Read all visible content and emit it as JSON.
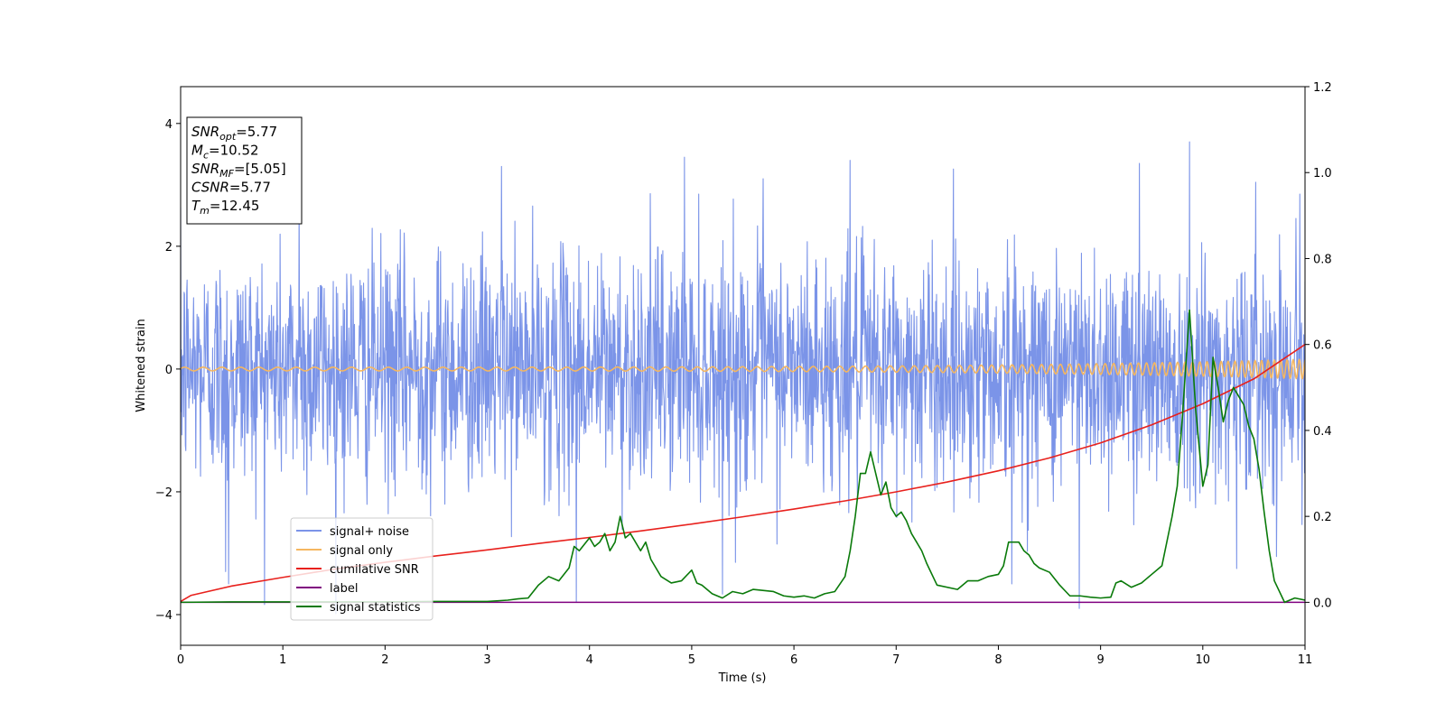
{
  "chart_data": {
    "type": "line",
    "xlabel": "Time (s)",
    "ylabel": "Whitened strain",
    "xlim": [
      0,
      11
    ],
    "ylim_left": [
      -4.5,
      4.6
    ],
    "ylim_right": [
      -0.1,
      1.2
    ],
    "x_ticks": [
      "0",
      "1",
      "2",
      "3",
      "4",
      "5",
      "6",
      "7",
      "8",
      "9",
      "10",
      "11"
    ],
    "y_ticks_left": [
      "4",
      "2",
      "0",
      "−2",
      "−4"
    ],
    "y_ticks_right": [
      "1.2",
      "1.0",
      "0.8",
      "0.6",
      "0.4",
      "0.2",
      "0.0"
    ],
    "grid": false,
    "legend_position": "lower-left",
    "info_box": [
      {
        "var": "SNR",
        "sub": "opt",
        "text": "=5.77"
      },
      {
        "var": "M",
        "sub": "c",
        "text": "=10.52"
      },
      {
        "var": "SNR",
        "sub": "MF",
        "text": "=[5.05]"
      },
      {
        "var": "CSNR",
        "sub": "",
        "text": "=5.77"
      },
      {
        "var": "T",
        "sub": "m",
        "text": "=12.45"
      }
    ],
    "series": [
      {
        "name": "signal+ noise",
        "axis": "left",
        "color": "#7b94e8",
        "generator": "noise",
        "std": 0.95,
        "n_points": 2600,
        "spikes": [
          {
            "x": 9.87,
            "y": 3.7
          },
          {
            "x": 3.14,
            "y": 3.3
          },
          {
            "x": 4.93,
            "y": 3.45
          },
          {
            "x": 6.55,
            "y": 3.4
          },
          {
            "x": 9.38,
            "y": 3.35
          },
          {
            "x": 0.44,
            "y": -3.3
          },
          {
            "x": 0.47,
            "y": -3.5
          },
          {
            "x": 3.87,
            "y": -3.8
          },
          {
            "x": 8.79,
            "y": -3.9
          },
          {
            "x": 5.43,
            "y": -3.15
          },
          {
            "x": 8.13,
            "y": -3.5
          },
          {
            "x": 10.33,
            "y": -3.25
          },
          {
            "x": 10.95,
            "y": 2.85
          },
          {
            "x": 1.16,
            "y": 2.8
          },
          {
            "x": 5.7,
            "y": 3.1
          }
        ]
      },
      {
        "name": "signal only",
        "axis": "left",
        "color": "#f5b760",
        "generator": "chirp",
        "amplitude_start": 0.03,
        "amplitude_end": 0.16,
        "freq_start": 5.5,
        "freq_end": 17.0
      },
      {
        "name": "cumilative SNR",
        "axis": "right",
        "color": "#e8211d",
        "x": [
          0,
          0.1,
          0.5,
          1,
          1.5,
          2,
          2.5,
          3,
          3.5,
          4,
          4.5,
          5,
          5.5,
          6,
          6.5,
          7,
          7.5,
          8,
          8.5,
          9,
          9.5,
          10,
          10.5,
          11
        ],
        "y": [
          0.002,
          0.016,
          0.038,
          0.058,
          0.077,
          0.093,
          0.108,
          0.122,
          0.137,
          0.151,
          0.166,
          0.182,
          0.199,
          0.217,
          0.236,
          0.257,
          0.28,
          0.306,
          0.336,
          0.371,
          0.413,
          0.462,
          0.52,
          0.6
        ]
      },
      {
        "name": "label",
        "axis": "right",
        "color": "#800080",
        "x": [
          0,
          11
        ],
        "y": [
          0.0,
          0.0
        ]
      },
      {
        "name": "signal statistics",
        "axis": "right",
        "color": "#0a7a0a",
        "x": [
          0,
          0.5,
          1,
          1.5,
          2,
          2.5,
          3,
          3.2,
          3.3,
          3.4,
          3.5,
          3.6,
          3.7,
          3.8,
          3.85,
          3.9,
          4.0,
          4.05,
          4.1,
          4.15,
          4.2,
          4.25,
          4.3,
          4.35,
          4.4,
          4.5,
          4.55,
          4.6,
          4.7,
          4.8,
          4.9,
          5.0,
          5.05,
          5.1,
          5.2,
          5.3,
          5.4,
          5.5,
          5.6,
          5.8,
          5.9,
          6.0,
          6.1,
          6.2,
          6.3,
          6.4,
          6.5,
          6.55,
          6.6,
          6.65,
          6.7,
          6.75,
          6.8,
          6.85,
          6.9,
          6.95,
          7.0,
          7.05,
          7.1,
          7.15,
          7.25,
          7.3,
          7.4,
          7.6,
          7.7,
          7.8,
          7.9,
          8.0,
          8.05,
          8.1,
          8.2,
          8.25,
          8.3,
          8.35,
          8.4,
          8.5,
          8.6,
          8.7,
          8.8,
          8.9,
          9.0,
          9.1,
          9.15,
          9.2,
          9.3,
          9.4,
          9.5,
          9.6,
          9.7,
          9.75,
          9.8,
          9.87,
          9.93,
          10.0,
          10.05,
          10.1,
          10.15,
          10.2,
          10.25,
          10.3,
          10.4,
          10.45,
          10.5,
          10.55,
          10.6,
          10.65,
          10.7,
          10.8,
          10.9,
          11.0
        ],
        "y": [
          0.0,
          0.001,
          0.001,
          0.001,
          0.001,
          0.002,
          0.002,
          0.005,
          0.008,
          0.01,
          0.04,
          0.06,
          0.05,
          0.08,
          0.13,
          0.12,
          0.15,
          0.13,
          0.14,
          0.16,
          0.12,
          0.14,
          0.2,
          0.15,
          0.16,
          0.12,
          0.14,
          0.1,
          0.06,
          0.045,
          0.05,
          0.075,
          0.045,
          0.04,
          0.02,
          0.01,
          0.025,
          0.02,
          0.03,
          0.025,
          0.015,
          0.012,
          0.015,
          0.01,
          0.02,
          0.025,
          0.06,
          0.12,
          0.2,
          0.3,
          0.3,
          0.35,
          0.3,
          0.25,
          0.28,
          0.22,
          0.2,
          0.21,
          0.19,
          0.16,
          0.12,
          0.09,
          0.04,
          0.03,
          0.05,
          0.05,
          0.06,
          0.065,
          0.085,
          0.14,
          0.14,
          0.12,
          0.11,
          0.09,
          0.08,
          0.07,
          0.04,
          0.015,
          0.015,
          0.012,
          0.01,
          0.012,
          0.045,
          0.05,
          0.035,
          0.045,
          0.065,
          0.085,
          0.2,
          0.27,
          0.43,
          0.68,
          0.45,
          0.27,
          0.32,
          0.57,
          0.5,
          0.42,
          0.47,
          0.5,
          0.46,
          0.41,
          0.38,
          0.31,
          0.21,
          0.12,
          0.05,
          0.0,
          0.01,
          0.005
        ]
      }
    ]
  }
}
